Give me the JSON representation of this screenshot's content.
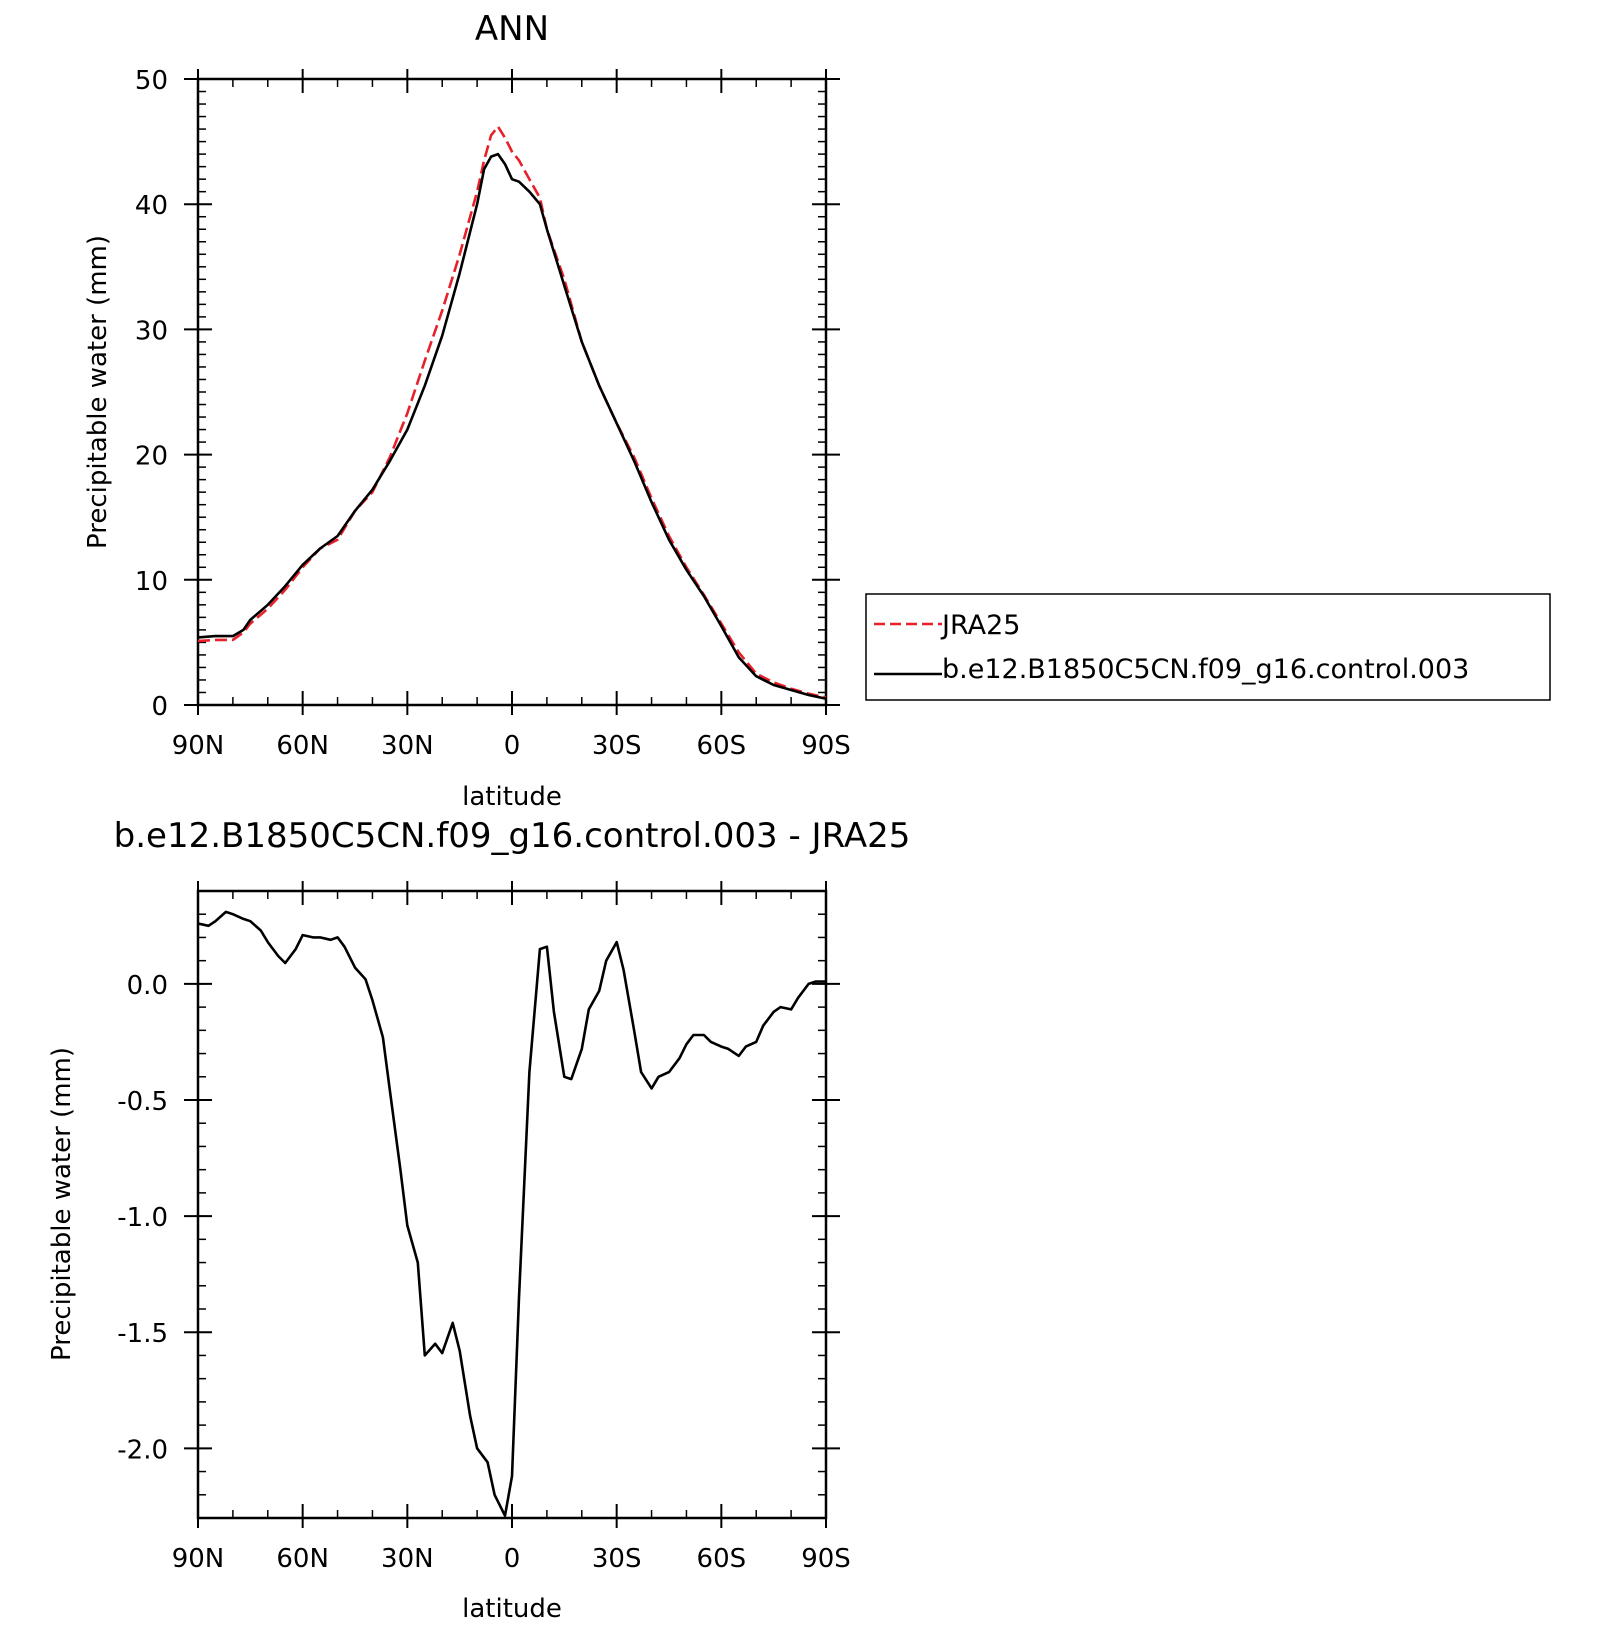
{
  "chart_data": [
    {
      "type": "line",
      "title": "ANN",
      "xlabel": "latitude",
      "ylabel": "Precipitable water (mm)",
      "xlim": [
        90,
        -90
      ],
      "ylim": [
        0,
        50
      ],
      "x_ticks": [
        90,
        60,
        30,
        0,
        -30,
        -60,
        -90
      ],
      "x_tick_labels": [
        "90N",
        "60N",
        "30N",
        "0",
        "30S",
        "60S",
        "90S"
      ],
      "y_ticks": [
        0,
        10,
        20,
        30,
        40,
        50
      ],
      "y_tick_labels": [
        "0",
        "10",
        "20",
        "30",
        "40",
        "50"
      ],
      "legend": "right",
      "grid": false,
      "series": [
        {
          "name": "JRA25",
          "color": "#e8202a",
          "dash": "dashed",
          "x": [
            90,
            85,
            80,
            77,
            75,
            70,
            65,
            60,
            55,
            50,
            45,
            40,
            35,
            30,
            25,
            20,
            15,
            10,
            8,
            6,
            4,
            2,
            0,
            -2,
            -5,
            -8,
            -10,
            -15,
            -20,
            -25,
            -30,
            -35,
            -40,
            -45,
            -50,
            -55,
            -60,
            -65,
            -70,
            -75,
            -80,
            -85,
            -90
          ],
          "y": [
            5.1,
            5.2,
            5.2,
            5.8,
            6.5,
            7.7,
            9.2,
            11.0,
            12.5,
            13.2,
            15.5,
            17.0,
            19.8,
            23.3,
            27.5,
            31.5,
            36.0,
            41.0,
            43.5,
            45.5,
            46.2,
            45.3,
            44.2,
            43.5,
            42.0,
            40.5,
            38.0,
            34.0,
            29.0,
            25.5,
            22.5,
            19.8,
            16.5,
            13.5,
            11.0,
            8.8,
            6.5,
            4.2,
            2.5,
            1.8,
            1.3,
            0.9,
            0.6
          ]
        },
        {
          "name": "b.e12.B1850C5CN.f09_g16.control.003",
          "color": "#000000",
          "dash": "solid",
          "x": [
            90,
            85,
            80,
            77,
            75,
            70,
            65,
            60,
            55,
            50,
            45,
            40,
            35,
            30,
            25,
            20,
            15,
            10,
            8,
            6,
            4,
            2,
            0,
            -2,
            -5,
            -8,
            -10,
            -15,
            -20,
            -25,
            -30,
            -35,
            -40,
            -45,
            -50,
            -55,
            -60,
            -65,
            -70,
            -75,
            -80,
            -85,
            -90
          ],
          "y": [
            5.4,
            5.5,
            5.5,
            6.0,
            6.8,
            8.0,
            9.5,
            11.2,
            12.5,
            13.5,
            15.5,
            17.2,
            19.5,
            22.0,
            25.5,
            29.5,
            34.5,
            40.0,
            42.8,
            43.8,
            44.0,
            43.2,
            42.0,
            41.8,
            41.0,
            40.0,
            38.0,
            33.5,
            29.0,
            25.5,
            22.5,
            19.5,
            16.2,
            13.2,
            10.8,
            8.7,
            6.3,
            3.8,
            2.3,
            1.6,
            1.2,
            0.8,
            0.5
          ]
        }
      ]
    },
    {
      "type": "line",
      "title": "b.e12.B1850C5CN.f09_g16.control.003 - JRA25",
      "xlabel": "latitude",
      "ylabel": "Precipitable water (mm)",
      "xlim": [
        90,
        -90
      ],
      "ylim": [
        -2.3,
        0.4
      ],
      "x_ticks": [
        90,
        60,
        30,
        0,
        -30,
        -60,
        -90
      ],
      "x_tick_labels": [
        "90N",
        "60N",
        "30N",
        "0",
        "30S",
        "60S",
        "90S"
      ],
      "y_ticks": [
        0.0,
        -0.5,
        -1.0,
        -1.5,
        -2.0
      ],
      "y_tick_labels": [
        "0.0",
        "-0.5",
        "-1.0",
        "-1.5",
        "-2.0"
      ],
      "grid": false,
      "series": [
        {
          "color": "#000000",
          "dash": "solid",
          "x": [
            90,
            87,
            85,
            82,
            80,
            77,
            75,
            72,
            70,
            67,
            65,
            62,
            60,
            57,
            55,
            52,
            50,
            48,
            45,
            42,
            40,
            37,
            35,
            32,
            30,
            27,
            25,
            22,
            20,
            17,
            15,
            12,
            10,
            7,
            5,
            2,
            0,
            -2,
            -5,
            -8,
            -10,
            -12,
            -15,
            -17,
            -20,
            -22,
            -25,
            -27,
            -30,
            -32,
            -35,
            -37,
            -40,
            -42,
            -45,
            -48,
            -50,
            -52,
            -55,
            -57,
            -60,
            -62,
            -65,
            -67,
            -70,
            -72,
            -75,
            -77,
            -80,
            -82,
            -85,
            -87,
            -90
          ],
          "y": [
            0.26,
            0.25,
            0.27,
            0.31,
            0.3,
            0.28,
            0.27,
            0.23,
            0.18,
            0.12,
            0.09,
            0.15,
            0.21,
            0.2,
            0.2,
            0.19,
            0.2,
            0.16,
            0.07,
            0.02,
            -0.07,
            -0.23,
            -0.46,
            -0.8,
            -1.04,
            -1.2,
            -1.6,
            -1.55,
            -1.59,
            -1.46,
            -1.58,
            -1.86,
            -2.0,
            -2.06,
            -2.2,
            -2.29,
            -2.12,
            -1.35,
            -0.38,
            0.15,
            0.16,
            -0.12,
            -0.4,
            -0.41,
            -0.28,
            -0.11,
            -0.03,
            0.1,
            0.18,
            0.06,
            -0.2,
            -0.38,
            -0.45,
            -0.4,
            -0.38,
            -0.32,
            -0.26,
            -0.22,
            -0.22,
            -0.25,
            -0.27,
            -0.28,
            -0.31,
            -0.27,
            -0.25,
            -0.18,
            -0.12,
            -0.1,
            -0.11,
            -0.06,
            0.0,
            0.01,
            0.01
          ]
        }
      ]
    }
  ]
}
